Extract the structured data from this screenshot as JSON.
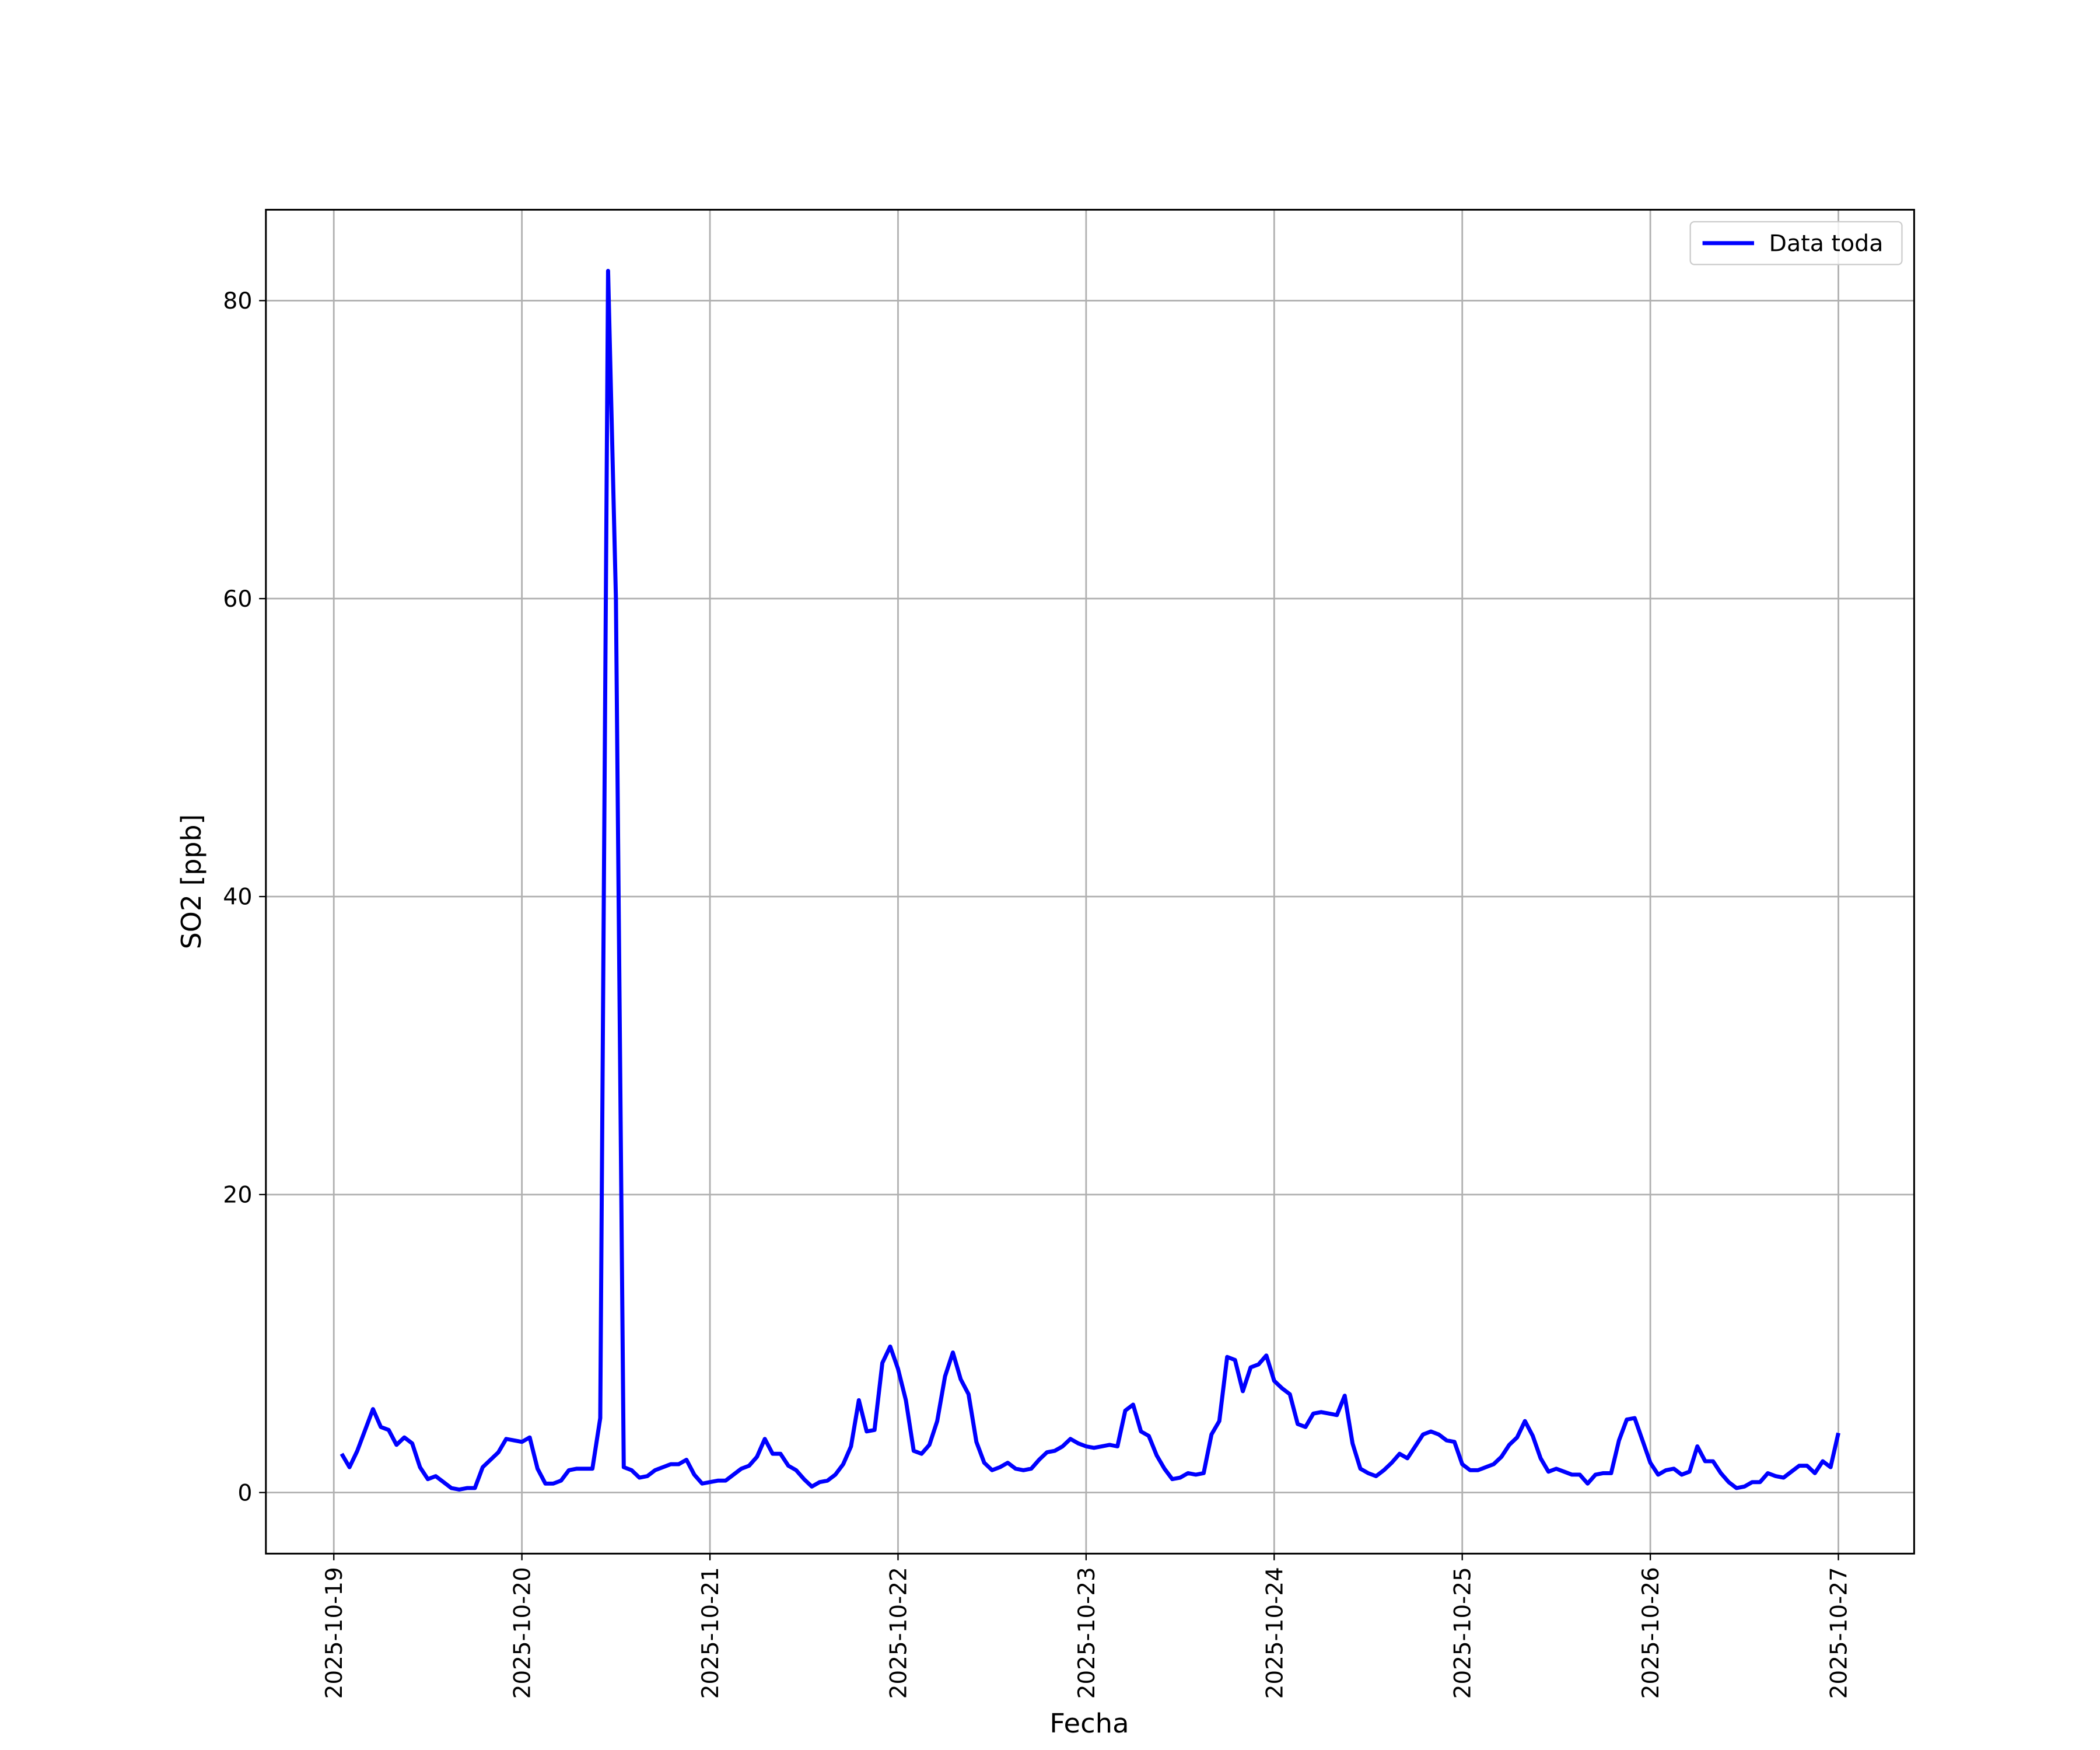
{
  "chart_data": {
    "type": "line",
    "xlabel": "Fecha",
    "ylabel": "SO2 [ppb]",
    "x": [
      "2025-10-19 01:00",
      "2025-10-19 02:00",
      "2025-10-19 03:00",
      "2025-10-19 04:00",
      "2025-10-19 05:00",
      "2025-10-19 06:00",
      "2025-10-19 07:00",
      "2025-10-19 08:00",
      "2025-10-19 09:00",
      "2025-10-19 10:00",
      "2025-10-19 11:00",
      "2025-10-19 12:00",
      "2025-10-19 13:00",
      "2025-10-19 14:00",
      "2025-10-19 15:00",
      "2025-10-19 16:00",
      "2025-10-19 17:00",
      "2025-10-19 18:00",
      "2025-10-19 19:00",
      "2025-10-19 20:00",
      "2025-10-19 21:00",
      "2025-10-19 22:00",
      "2025-10-19 23:00",
      "2025-10-20 00:00",
      "2025-10-20 01:00",
      "2025-10-20 02:00",
      "2025-10-20 03:00",
      "2025-10-20 04:00",
      "2025-10-20 05:00",
      "2025-10-20 06:00",
      "2025-10-20 07:00",
      "2025-10-20 08:00",
      "2025-10-20 09:00",
      "2025-10-20 10:00",
      "2025-10-20 11:00",
      "2025-10-20 12:00",
      "2025-10-20 13:00",
      "2025-10-20 14:00",
      "2025-10-20 15:00",
      "2025-10-20 16:00",
      "2025-10-20 17:00",
      "2025-10-20 18:00",
      "2025-10-20 19:00",
      "2025-10-20 20:00",
      "2025-10-20 21:00",
      "2025-10-20 22:00",
      "2025-10-20 23:00",
      "2025-10-21 00:00",
      "2025-10-21 01:00",
      "2025-10-21 02:00",
      "2025-10-21 03:00",
      "2025-10-21 04:00",
      "2025-10-21 05:00",
      "2025-10-21 06:00",
      "2025-10-21 07:00",
      "2025-10-21 08:00",
      "2025-10-21 09:00",
      "2025-10-21 10:00",
      "2025-10-21 11:00",
      "2025-10-21 12:00",
      "2025-10-21 13:00",
      "2025-10-21 14:00",
      "2025-10-21 15:00",
      "2025-10-21 16:00",
      "2025-10-21 17:00",
      "2025-10-21 18:00",
      "2025-10-21 19:00",
      "2025-10-21 20:00",
      "2025-10-21 21:00",
      "2025-10-21 22:00",
      "2025-10-21 23:00",
      "2025-10-22 00:00",
      "2025-10-22 01:00",
      "2025-10-22 02:00",
      "2025-10-22 03:00",
      "2025-10-22 04:00",
      "2025-10-22 05:00",
      "2025-10-22 06:00",
      "2025-10-22 07:00",
      "2025-10-22 08:00",
      "2025-10-22 09:00",
      "2025-10-22 10:00",
      "2025-10-22 11:00",
      "2025-10-22 12:00",
      "2025-10-22 13:00",
      "2025-10-22 14:00",
      "2025-10-22 15:00",
      "2025-10-22 16:00",
      "2025-10-22 17:00",
      "2025-10-22 18:00",
      "2025-10-22 19:00",
      "2025-10-22 20:00",
      "2025-10-22 21:00",
      "2025-10-22 22:00",
      "2025-10-22 23:00",
      "2025-10-23 00:00",
      "2025-10-23 01:00",
      "2025-10-23 02:00",
      "2025-10-23 03:00",
      "2025-10-23 04:00",
      "2025-10-23 05:00",
      "2025-10-23 06:00",
      "2025-10-23 07:00",
      "2025-10-23 08:00",
      "2025-10-23 09:00",
      "2025-10-23 10:00",
      "2025-10-23 11:00",
      "2025-10-23 12:00",
      "2025-10-23 13:00",
      "2025-10-23 14:00",
      "2025-10-23 15:00",
      "2025-10-23 16:00",
      "2025-10-23 17:00",
      "2025-10-23 18:00",
      "2025-10-23 19:00",
      "2025-10-23 20:00",
      "2025-10-23 21:00",
      "2025-10-23 22:00",
      "2025-10-23 23:00",
      "2025-10-24 00:00",
      "2025-10-24 01:00",
      "2025-10-24 02:00",
      "2025-10-24 03:00",
      "2025-10-24 04:00",
      "2025-10-24 05:00",
      "2025-10-24 06:00",
      "2025-10-24 07:00",
      "2025-10-24 08:00",
      "2025-10-24 09:00",
      "2025-10-24 10:00",
      "2025-10-24 11:00",
      "2025-10-24 12:00",
      "2025-10-24 13:00",
      "2025-10-24 14:00",
      "2025-10-24 15:00",
      "2025-10-24 16:00",
      "2025-10-24 17:00",
      "2025-10-24 18:00",
      "2025-10-24 19:00",
      "2025-10-24 20:00",
      "2025-10-24 21:00",
      "2025-10-24 22:00",
      "2025-10-24 23:00",
      "2025-10-25 00:00",
      "2025-10-25 01:00",
      "2025-10-25 02:00",
      "2025-10-25 03:00",
      "2025-10-25 04:00",
      "2025-10-25 05:00",
      "2025-10-25 06:00",
      "2025-10-25 07:00",
      "2025-10-25 08:00",
      "2025-10-25 09:00",
      "2025-10-25 10:00",
      "2025-10-25 11:00",
      "2025-10-25 12:00",
      "2025-10-25 13:00",
      "2025-10-25 14:00",
      "2025-10-25 15:00",
      "2025-10-25 16:00",
      "2025-10-25 17:00",
      "2025-10-25 18:00",
      "2025-10-25 19:00",
      "2025-10-25 20:00",
      "2025-10-25 21:00",
      "2025-10-25 22:00",
      "2025-10-25 23:00",
      "2025-10-26 00:00",
      "2025-10-26 01:00",
      "2025-10-26 02:00",
      "2025-10-26 03:00",
      "2025-10-26 04:00",
      "2025-10-26 05:00",
      "2025-10-26 06:00",
      "2025-10-26 07:00",
      "2025-10-26 08:00",
      "2025-10-26 09:00",
      "2025-10-26 10:00",
      "2025-10-26 11:00",
      "2025-10-26 12:00",
      "2025-10-26 13:00",
      "2025-10-26 14:00",
      "2025-10-26 15:00",
      "2025-10-26 16:00",
      "2025-10-26 17:00",
      "2025-10-26 18:00",
      "2025-10-26 19:00",
      "2025-10-26 20:00",
      "2025-10-26 21:00",
      "2025-10-26 22:00",
      "2025-10-26 23:00",
      "2025-10-27 00:00"
    ],
    "series": [
      {
        "name": "Data toda",
        "color": "#0000ff",
        "values": [
          2.6,
          1.7,
          2.8,
          4.2,
          5.6,
          4.4,
          4.2,
          3.2,
          3.7,
          3.3,
          1.7,
          0.9,
          1.1,
          0.7,
          0.3,
          0.2,
          0.3,
          0.3,
          1.7,
          2.2,
          2.7,
          3.6,
          3.5,
          3.4,
          3.7,
          1.6,
          0.6,
          0.6,
          0.8,
          1.5,
          1.6,
          1.6,
          1.6,
          5.0,
          82,
          60,
          1.7,
          1.5,
          1.0,
          1.1,
          1.5,
          1.7,
          1.9,
          1.9,
          2.2,
          1.2,
          0.6,
          0.7,
          0.8,
          0.8,
          1.2,
          1.6,
          1.8,
          2.4,
          3.6,
          2.6,
          2.6,
          1.8,
          1.5,
          0.9,
          0.4,
          0.7,
          0.8,
          1.2,
          1.9,
          3.1,
          6.2,
          4.1,
          4.2,
          8.7,
          9.8,
          8.3,
          6.2,
          2.8,
          2.6,
          3.2,
          4.8,
          7.8,
          9.4,
          7.6,
          6.6,
          3.4,
          2.0,
          1.5,
          1.7,
          2.0,
          1.6,
          1.5,
          1.6,
          2.2,
          2.7,
          2.8,
          3.1,
          3.6,
          3.3,
          3.1,
          3.0,
          3.1,
          3.2,
          3.1,
          5.5,
          5.9,
          4.1,
          3.8,
          2.5,
          1.6,
          0.9,
          1.0,
          1.3,
          1.2,
          1.3,
          3.9,
          4.8,
          9.1,
          8.9,
          6.8,
          8.4,
          8.6,
          9.2,
          7.5,
          7.0,
          6.6,
          4.6,
          4.4,
          5.3,
          5.4,
          5.3,
          5.2,
          6.5,
          3.3,
          1.6,
          1.3,
          1.1,
          1.5,
          2.0,
          2.6,
          2.3,
          3.1,
          3.9,
          4.1,
          3.9,
          3.5,
          3.4,
          1.9,
          1.5,
          1.5,
          1.7,
          1.9,
          2.4,
          3.2,
          3.7,
          4.8,
          3.8,
          2.3,
          1.4,
          1.6,
          1.4,
          1.2,
          1.2,
          0.6,
          1.2,
          1.3,
          1.3,
          3.5,
          4.9,
          5.0,
          3.5,
          2.0,
          1.2,
          1.5,
          1.6,
          1.2,
          1.4,
          3.1,
          2.1,
          2.1,
          1.3,
          0.7,
          0.3,
          0.4,
          0.7,
          0.7,
          1.3,
          1.1,
          1.0,
          1.4,
          1.8,
          1.8,
          1.3,
          2.1,
          1.7,
          4.0
        ]
      }
    ],
    "xlim": [
      "2025-10-18 15:20",
      "2025-10-27 09:40"
    ],
    "xticks": [
      "2025-10-19",
      "2025-10-20",
      "2025-10-21",
      "2025-10-22",
      "2025-10-23",
      "2025-10-24",
      "2025-10-25",
      "2025-10-26",
      "2025-10-27"
    ],
    "ylim": [
      -4.1,
      86.1
    ],
    "yticks": [
      0,
      20,
      40,
      60,
      80
    ],
    "grid": true,
    "legend": "upper right"
  }
}
